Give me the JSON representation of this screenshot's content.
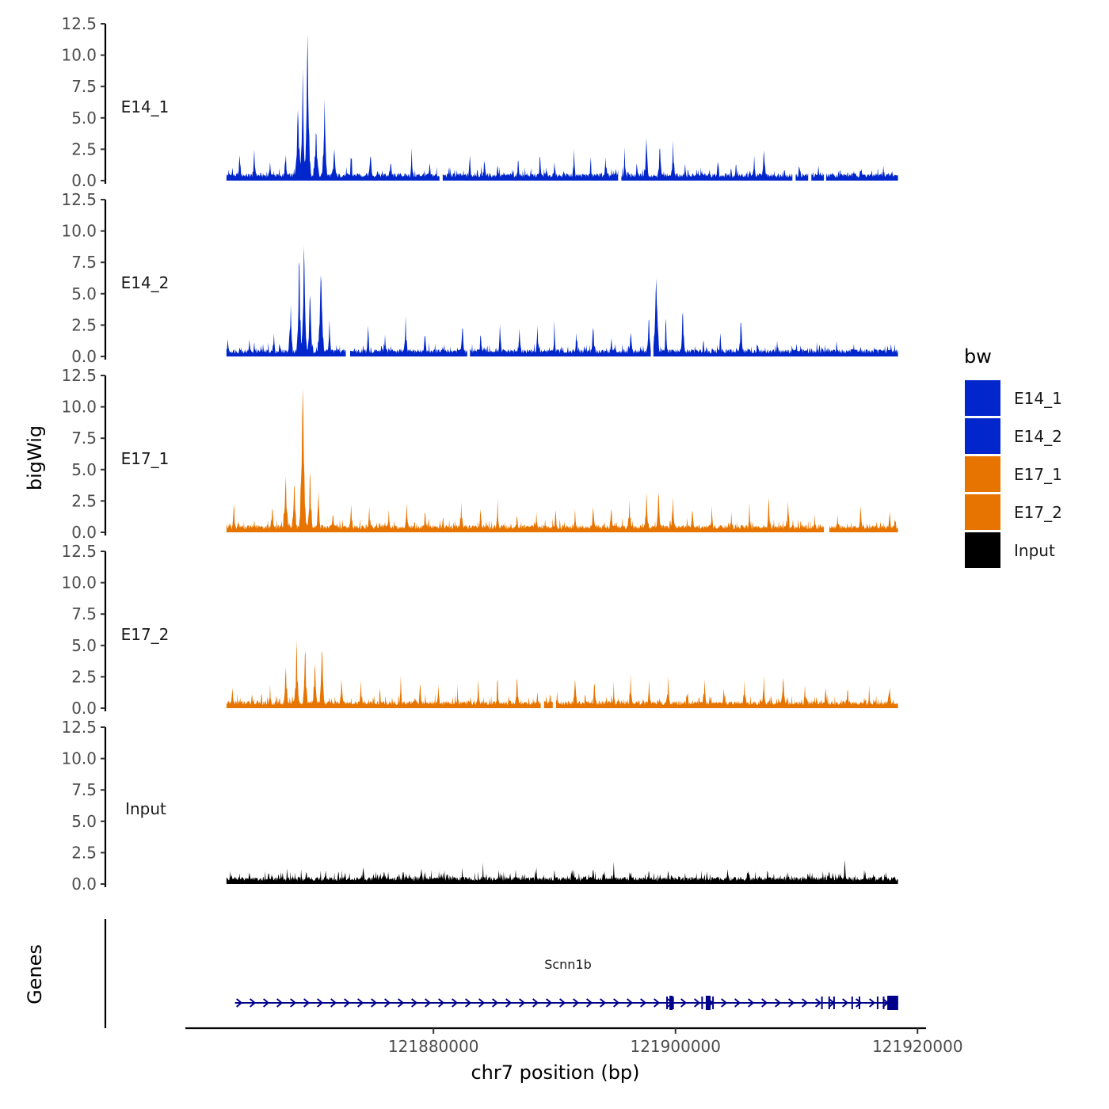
{
  "chart_data": {
    "type": "area",
    "x_label": "chr7 position (bp)",
    "y_label": "bigWig",
    "genes_label": "Genes",
    "x_ticks": [
      121880000,
      121900000,
      121920000
    ],
    "x_tick_labels": [
      "121880000",
      "121900000",
      "121920000"
    ],
    "xlim": [
      121859500,
      121920700
    ],
    "data_xrange": [
      121862900,
      121918400
    ],
    "ylim": [
      0,
      12.5
    ],
    "y_ticks": [
      0,
      2.5,
      5,
      7.5,
      10,
      12.5
    ],
    "y_tick_labels": [
      "0.0",
      "2.5",
      "5.0",
      "7.5",
      "10.0",
      "12.5"
    ],
    "legend": {
      "title": "bw",
      "entries": [
        {
          "label": "E14_1",
          "color": "#0026cc"
        },
        {
          "label": "E14_2",
          "color": "#0026cc"
        },
        {
          "label": "E17_1",
          "color": "#e87400"
        },
        {
          "label": "E17_2",
          "color": "#e87400"
        },
        {
          "label": "Input",
          "color": "#000000"
        }
      ]
    },
    "series": [
      {
        "name": "E14_1",
        "color": "#0026cc",
        "peaks": [
          [
            121864000,
            2.5
          ],
          [
            121865200,
            2.6
          ],
          [
            121866500,
            1.5
          ],
          [
            121867800,
            2.1
          ],
          [
            121868800,
            5.8
          ],
          [
            121869200,
            8.6
          ],
          [
            121869600,
            12.0
          ],
          [
            121870300,
            4.2
          ],
          [
            121871000,
            6.5
          ],
          [
            121871800,
            2.5
          ],
          [
            121873200,
            1.8
          ],
          [
            121874800,
            2.2
          ],
          [
            121876500,
            1.5
          ],
          [
            121878200,
            2.6
          ],
          [
            121879700,
            1.6
          ],
          [
            121881300,
            1.1
          ],
          [
            121883000,
            1.9
          ],
          [
            121884200,
            1.7
          ],
          [
            121885300,
            1.3
          ],
          [
            121887000,
            1.9
          ],
          [
            121888800,
            2.3
          ],
          [
            121890000,
            1.6
          ],
          [
            121891600,
            2.4
          ],
          [
            121893000,
            1.5
          ],
          [
            121894200,
            2.3
          ],
          [
            121895800,
            2.8
          ],
          [
            121896800,
            1.6
          ],
          [
            121897600,
            3.5
          ],
          [
            121898700,
            3.0
          ],
          [
            121899800,
            3.2
          ],
          [
            121900800,
            1.5
          ],
          [
            121902200,
            0.9
          ],
          [
            121903500,
            1.6
          ],
          [
            121905000,
            1.5
          ],
          [
            121906500,
            2.1
          ],
          [
            121907300,
            2.4
          ],
          [
            121909000,
            1.0
          ],
          [
            121910300,
            0.9
          ],
          [
            121911800,
            1.0
          ],
          [
            121913600,
            0.9
          ],
          [
            121915300,
            0.9
          ],
          [
            121917200,
            0.8
          ]
        ],
        "gaps": [
          [
            121880500,
            121880750
          ],
          [
            121895300,
            121895500
          ],
          [
            121909700,
            121909900
          ],
          [
            121911000,
            121911200
          ],
          [
            121912300,
            121912400
          ]
        ]
      },
      {
        "name": "E14_2",
        "color": "#0026cc",
        "peaks": [
          [
            121863000,
            1.5
          ],
          [
            121864800,
            1.4
          ],
          [
            121866800,
            2.1
          ],
          [
            121868200,
            4.5
          ],
          [
            121868900,
            8.4
          ],
          [
            121869300,
            8.9
          ],
          [
            121869800,
            5.5
          ],
          [
            121870700,
            7.0
          ],
          [
            121871400,
            3.1
          ],
          [
            121873000,
            2.2
          ],
          [
            121874600,
            2.3
          ],
          [
            121876000,
            1.8
          ],
          [
            121877700,
            3.4
          ],
          [
            121879300,
            1.9
          ],
          [
            121880900,
            1.0
          ],
          [
            121882400,
            2.5
          ],
          [
            121883900,
            1.9
          ],
          [
            121885500,
            2.8
          ],
          [
            121887100,
            2.4
          ],
          [
            121888600,
            2.6
          ],
          [
            121890000,
            2.9
          ],
          [
            121891800,
            2.1
          ],
          [
            121893200,
            2.5
          ],
          [
            121894700,
            1.7
          ],
          [
            121896300,
            2.0
          ],
          [
            121897800,
            3.4
          ],
          [
            121898400,
            6.4
          ],
          [
            121899200,
            3.6
          ],
          [
            121900600,
            3.8
          ],
          [
            121902300,
            1.6
          ],
          [
            121903700,
            2.2
          ],
          [
            121905400,
            3.1
          ],
          [
            121906800,
            1.0
          ],
          [
            121908400,
            1.3
          ],
          [
            121910000,
            0.9
          ],
          [
            121911700,
            0.8
          ],
          [
            121913300,
            1.0
          ],
          [
            121915300,
            0.9
          ],
          [
            121917800,
            1.0
          ]
        ],
        "gaps": [
          [
            121872800,
            121873100
          ],
          [
            121882800,
            121883000
          ],
          [
            121898000,
            121898150
          ]
        ]
      },
      {
        "name": "E17_1",
        "color": "#e87400",
        "peaks": [
          [
            121863500,
            2.1
          ],
          [
            121865200,
            1.0
          ],
          [
            121866700,
            2.1
          ],
          [
            121867800,
            4.6
          ],
          [
            121868500,
            4.1
          ],
          [
            121869200,
            11.5
          ],
          [
            121869800,
            5.2
          ],
          [
            121870500,
            3.4
          ],
          [
            121871700,
            1.6
          ],
          [
            121873200,
            2.3
          ],
          [
            121874700,
            1.9
          ],
          [
            121876300,
            2.0
          ],
          [
            121877800,
            2.4
          ],
          [
            121879300,
            1.8
          ],
          [
            121880800,
            1.3
          ],
          [
            121882300,
            2.5
          ],
          [
            121883900,
            1.6
          ],
          [
            121885300,
            3.0
          ],
          [
            121886900,
            1.5
          ],
          [
            121888500,
            1.7
          ],
          [
            121890100,
            2.2
          ],
          [
            121891700,
            1.9
          ],
          [
            121893200,
            2.3
          ],
          [
            121894700,
            2.0
          ],
          [
            121896200,
            2.6
          ],
          [
            121897600,
            3.3
          ],
          [
            121898600,
            3.5
          ],
          [
            121899800,
            2.8
          ],
          [
            121901400,
            2.0
          ],
          [
            121903000,
            2.2
          ],
          [
            121904600,
            1.9
          ],
          [
            121906100,
            2.4
          ],
          [
            121907700,
            2.7
          ],
          [
            121909300,
            2.6
          ],
          [
            121911500,
            1.4
          ],
          [
            121913400,
            1.5
          ],
          [
            121915300,
            1.9
          ],
          [
            121917700,
            1.8
          ]
        ],
        "gaps": [
          [
            121912300,
            121912700
          ]
        ]
      },
      {
        "name": "E17_2",
        "color": "#e87400",
        "peaks": [
          [
            121863400,
            1.7
          ],
          [
            121865000,
            1.3
          ],
          [
            121866500,
            1.9
          ],
          [
            121867800,
            3.4
          ],
          [
            121868700,
            5.2
          ],
          [
            121869400,
            4.9
          ],
          [
            121870200,
            3.8
          ],
          [
            121870800,
            5.2
          ],
          [
            121872400,
            2.4
          ],
          [
            121874000,
            2.1
          ],
          [
            121875600,
            1.8
          ],
          [
            121877300,
            2.6
          ],
          [
            121878900,
            2.4
          ],
          [
            121880400,
            1.9
          ],
          [
            121882000,
            1.7
          ],
          [
            121883700,
            2.6
          ],
          [
            121885300,
            1.9
          ],
          [
            121886900,
            2.6
          ],
          [
            121888600,
            1.4
          ],
          [
            121890200,
            1.6
          ],
          [
            121891700,
            2.3
          ],
          [
            121893300,
            2.3
          ],
          [
            121894900,
            2.0
          ],
          [
            121896300,
            3.0
          ],
          [
            121897800,
            2.8
          ],
          [
            121899400,
            2.7
          ],
          [
            121901000,
            1.4
          ],
          [
            121902400,
            2.5
          ],
          [
            121904000,
            1.8
          ],
          [
            121905700,
            2.3
          ],
          [
            121907300,
            3.0
          ],
          [
            121908900,
            2.6
          ],
          [
            121910700,
            2.0
          ],
          [
            121912400,
            1.6
          ],
          [
            121914200,
            1.4
          ],
          [
            121916000,
            1.8
          ],
          [
            121917700,
            1.8
          ]
        ],
        "gaps": [
          [
            121888900,
            121889100
          ],
          [
            121889900,
            121890100
          ]
        ]
      },
      {
        "name": "Input",
        "color": "#000000",
        "peaks": [
          [
            121863200,
            1.2
          ],
          [
            121864800,
            1.0
          ],
          [
            121866400,
            0.9
          ],
          [
            121867900,
            1.3
          ],
          [
            121869500,
            1.1
          ],
          [
            121871100,
            1.2
          ],
          [
            121872700,
            1.0
          ],
          [
            121874200,
            1.4
          ],
          [
            121875900,
            1.0
          ],
          [
            121877500,
            1.1
          ],
          [
            121879000,
            1.3
          ],
          [
            121880800,
            1.0
          ],
          [
            121882400,
            1.2
          ],
          [
            121884100,
            1.3
          ],
          [
            121885400,
            1.1
          ],
          [
            121886800,
            1.2
          ],
          [
            121888500,
            1.4
          ],
          [
            121890000,
            1.2
          ],
          [
            121891600,
            1.3
          ],
          [
            121893200,
            1.3
          ],
          [
            121894900,
            1.4
          ],
          [
            121896300,
            1.0
          ],
          [
            121897800,
            1.2
          ],
          [
            121899400,
            1.1
          ],
          [
            121900800,
            1.0
          ],
          [
            121902600,
            1.1
          ],
          [
            121904300,
            1.2
          ],
          [
            121906000,
            1.1
          ],
          [
            121907600,
            1.2
          ],
          [
            121909300,
            1.0
          ],
          [
            121911100,
            1.0
          ],
          [
            121912700,
            1.1
          ],
          [
            121914000,
            1.7
          ],
          [
            121915600,
            1.2
          ],
          [
            121917400,
            1.0
          ]
        ],
        "gaps": []
      }
    ],
    "gene": {
      "name": "Scnn1b",
      "strand": "+",
      "color": "#00008b",
      "tx_range": [
        121863600,
        121918400
      ],
      "exons": [
        [
          121899500,
          121899700
        ],
        [
          121902500,
          121902900
        ],
        [
          121917500,
          121918400
        ]
      ],
      "ticks": [
        121899300,
        121899800,
        121902200,
        121903100,
        121912100,
        121912700,
        121913100,
        121914600,
        121915200,
        121916700,
        121917200
      ]
    }
  }
}
